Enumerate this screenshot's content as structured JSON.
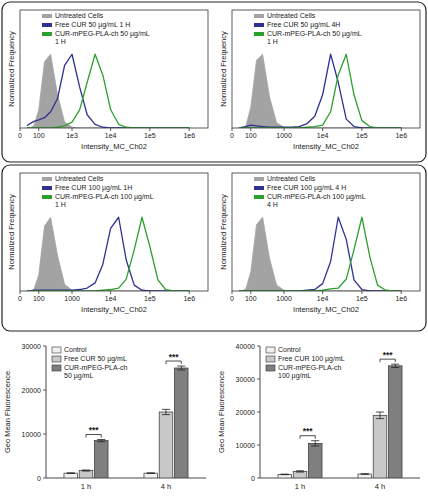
{
  "chart_data": [
    {
      "type": "line",
      "log": "x",
      "tick_labels": "x",
      "legend": "upper left",
      "xlabel": "Intensity_MC_Ch02",
      "ylabel": "Normalized Frequency",
      "x": [
        25,
        40,
        63,
        100,
        160,
        250,
        400,
        630,
        1000,
        1600,
        2500,
        4000,
        6300,
        10000,
        16000,
        25000,
        40000,
        63000,
        100000,
        160000,
        250000,
        400000,
        630000,
        1000000
      ],
      "xlim": [
        0,
        3000000
      ],
      "xticks": [
        0,
        100,
        {
          "value": 1000,
          "label": "1e3"
        },
        {
          "value": 10000,
          "label": "1e4"
        },
        {
          "value": 100000,
          "label": "1e5"
        },
        {
          "value": 1000000,
          "label": "1e6"
        }
      ],
      "ylim": [
        0,
        160
      ],
      "series": [
        {
          "name": "Untreated Cells",
          "type": "area",
          "color": "#a3a3a3",
          "values": [
            0,
            0,
            3,
            25,
            90,
            100,
            45,
            8,
            1,
            0,
            0,
            0,
            0,
            0,
            0,
            0,
            0,
            0,
            0,
            0,
            0,
            0,
            0,
            0
          ]
        },
        {
          "name": "Free CUR 50 µg/mL 1 H",
          "color": "#2e3192",
          "values": [
            3,
            6,
            9,
            11,
            14,
            22,
            40,
            85,
            100,
            55,
            18,
            5,
            1,
            0,
            0,
            0,
            0,
            0,
            0,
            0,
            0,
            0,
            0,
            0
          ]
        },
        {
          "name": "CUR-mPEG-PLA-ch 50 µg/mL 1 H",
          "color": "#2ca02c",
          "values": [
            0,
            0,
            0,
            0,
            0,
            0,
            1,
            3,
            8,
            25,
            62,
            100,
            72,
            25,
            5,
            1,
            0,
            0,
            0,
            0,
            0,
            0,
            0,
            0
          ]
        }
      ]
    },
    {
      "type": "line",
      "log": "x",
      "tick_labels": "x",
      "legend": "upper left",
      "xlabel": "Intensity_MC_Ch02",
      "ylabel": "Normalized Frequency",
      "x": [
        25,
        40,
        63,
        100,
        160,
        250,
        400,
        630,
        1000,
        1600,
        2500,
        4000,
        6300,
        10000,
        16000,
        25000,
        40000,
        63000,
        100000,
        160000,
        250000,
        400000,
        630000,
        1000000
      ],
      "xlim": [
        0,
        3000000
      ],
      "xticks": [
        0,
        100,
        1000,
        {
          "value": 10000,
          "label": "1e4"
        },
        {
          "value": 100000,
          "label": "1e5"
        },
        {
          "value": 1000000,
          "label": "1e6"
        }
      ],
      "ylim": [
        0,
        160
      ],
      "series": [
        {
          "name": "Untreated Cells",
          "type": "area",
          "color": "#a3a3a3",
          "values": [
            0,
            0,
            3,
            28,
            92,
            100,
            42,
            7,
            1,
            0,
            0,
            0,
            0,
            0,
            0,
            0,
            0,
            0,
            0,
            0,
            0,
            0,
            0,
            0
          ]
        },
        {
          "name": "Free CUR 50 µg/mL 4H",
          "color": "#2e3192",
          "values": [
            0,
            1,
            2,
            4,
            3,
            2,
            1,
            1,
            1,
            1,
            2,
            6,
            16,
            45,
            100,
            62,
            12,
            2,
            0,
            0,
            0,
            0,
            0,
            0
          ]
        },
        {
          "name": "CUR-mPEG-PLA-ch 50 µg/mL 1 H",
          "color": "#2ca02c",
          "values": [
            0,
            0,
            0,
            0,
            0,
            0,
            0,
            0,
            0,
            0,
            0,
            1,
            2,
            4,
            22,
            72,
            100,
            45,
            10,
            2,
            0,
            0,
            0,
            0
          ]
        }
      ]
    },
    {
      "type": "line",
      "log": "x",
      "tick_labels": "x",
      "legend": "upper left",
      "xlabel": "Intensity_MC_Ch02",
      "ylabel": "Normalized Frequency",
      "x": [
        25,
        40,
        63,
        100,
        160,
        250,
        400,
        630,
        1000,
        1600,
        2500,
        4000,
        6300,
        10000,
        16000,
        25000,
        40000,
        63000,
        100000,
        160000,
        250000,
        400000,
        630000,
        1000000
      ],
      "xlim": [
        0,
        3000000
      ],
      "xticks": [
        0,
        100,
        1000,
        {
          "value": 10000,
          "label": "1e4"
        },
        {
          "value": 100000,
          "label": "1e5"
        },
        {
          "value": 1000000,
          "label": "1e6"
        }
      ],
      "ylim": [
        0,
        160
      ],
      "series": [
        {
          "name": "Untreated Cells",
          "type": "area",
          "color": "#a3a3a3",
          "values": [
            0,
            0,
            2,
            22,
            88,
            100,
            48,
            9,
            1,
            0,
            0,
            0,
            0,
            0,
            0,
            0,
            0,
            0,
            0,
            0,
            0,
            0,
            0,
            0
          ]
        },
        {
          "name": "Free CUR 100 µg/mL 1H",
          "color": "#2e3192",
          "values": [
            0,
            0,
            1,
            1,
            1,
            1,
            1,
            1,
            1,
            2,
            4,
            11,
            36,
            85,
            100,
            42,
            8,
            1,
            0,
            0,
            0,
            0,
            0,
            0
          ]
        },
        {
          "name": "CUR-mPEG-PLA-ch 100 µg/mL 1 H",
          "color": "#2ca02c",
          "values": [
            0,
            0,
            0,
            0,
            0,
            0,
            0,
            0,
            0,
            0,
            0,
            0,
            1,
            2,
            4,
            16,
            56,
            100,
            60,
            15,
            2,
            0,
            0,
            0
          ]
        }
      ]
    },
    {
      "type": "line",
      "log": "x",
      "tick_labels": "x",
      "legend": "upper left",
      "xlabel": "Intensity_MC_Ch02",
      "ylabel": "Normalized Frequency",
      "x": [
        25,
        40,
        63,
        100,
        160,
        250,
        400,
        630,
        1000,
        1600,
        2500,
        4000,
        6300,
        10000,
        16000,
        25000,
        40000,
        63000,
        100000,
        160000,
        250000,
        400000,
        630000,
        1000000
      ],
      "xlim": [
        0,
        3000000
      ],
      "xticks": [
        0,
        100,
        1000,
        {
          "value": 10000,
          "label": "1e4"
        },
        {
          "value": 100000,
          "label": "1e5"
        },
        {
          "value": 1000000,
          "label": "1e6"
        }
      ],
      "ylim": [
        0,
        160
      ],
      "series": [
        {
          "name": "Untreated Cells",
          "type": "area",
          "color": "#a3a3a3",
          "values": [
            0,
            0,
            3,
            26,
            90,
            100,
            44,
            8,
            1,
            0,
            0,
            0,
            0,
            0,
            0,
            0,
            0,
            0,
            0,
            0,
            0,
            0,
            0,
            0
          ]
        },
        {
          "name": "Free CUR 100 µg/mL 4 H",
          "color": "#2e3192",
          "values": [
            0,
            0,
            0,
            0,
            0,
            0,
            0,
            0,
            0,
            0,
            0,
            1,
            2,
            10,
            40,
            100,
            70,
            15,
            2,
            0,
            0,
            0,
            0,
            0
          ]
        },
        {
          "name": "CUR-mPEG-PLA-ch 100 µg/mL 4 H",
          "color": "#2ca02c",
          "values": [
            0,
            0,
            0,
            0,
            0,
            0,
            0,
            0,
            0,
            0,
            0,
            0,
            0,
            1,
            3,
            4,
            16,
            56,
            100,
            46,
            8,
            1,
            0,
            0
          ]
        }
      ]
    },
    {
      "type": "bar",
      "legend": "upper left",
      "ylabel": "Geo Mean Fluorescence",
      "categories": [
        "1 h",
        "4 h"
      ],
      "ylim": [
        0,
        30000
      ],
      "yticks": [
        0,
        10000,
        20000,
        30000
      ],
      "annotations": [
        "***",
        "***"
      ],
      "series": [
        {
          "name": "Control",
          "color": "#f0f0f0",
          "values": [
            1100,
            1100
          ],
          "errors": [
            80,
            80
          ]
        },
        {
          "name": "Free CUR 50 µg/mL",
          "color": "#c8c8c8",
          "values": [
            1700,
            15000
          ],
          "errors": [
            120,
            600
          ]
        },
        {
          "name": "CUR-mPEG-PLA-ch 50 µg/mL",
          "color": "#7f7f7f",
          "values": [
            8500,
            25000
          ],
          "errors": [
            250,
            450
          ]
        }
      ]
    },
    {
      "type": "bar",
      "legend": "upper left",
      "ylabel": "Geo Mean Fluorescence",
      "categories": [
        "1 h",
        "4 h"
      ],
      "ylim": [
        0,
        40000
      ],
      "yticks": [
        0,
        10000,
        20000,
        30000,
        40000
      ],
      "annotations": [
        "***",
        "***"
      ],
      "series": [
        {
          "name": "Control",
          "color": "#f0f0f0",
          "values": [
            1100,
            1200
          ],
          "errors": [
            80,
            90
          ]
        },
        {
          "name": "Free CUR 100 µg/mL",
          "color": "#c8c8c8",
          "values": [
            2000,
            19000
          ],
          "errors": [
            200,
            1000
          ]
        },
        {
          "name": "CUR-mPEG-PLA-ch 100 µg/mL",
          "color": "#7f7f7f",
          "values": [
            10500,
            34000
          ],
          "errors": [
            800,
            500
          ]
        }
      ]
    }
  ]
}
